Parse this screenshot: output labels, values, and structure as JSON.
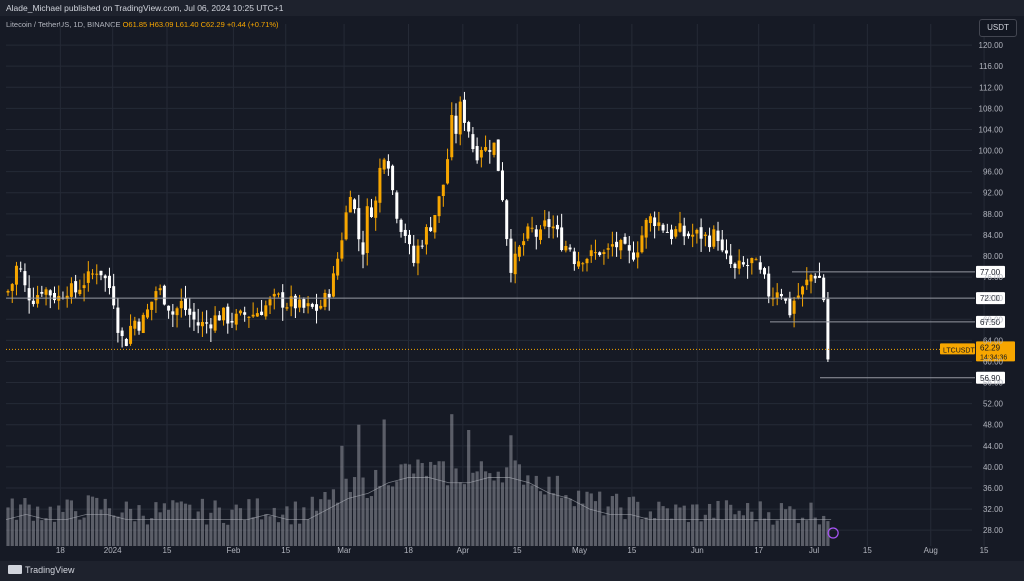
{
  "header": {
    "publisher_line": "Alade_Michael published on TradingView.com, Jul 06, 2024 10:25 UTC+1",
    "symbol": "Litecoin / TetherUS, 1D, BINANCE",
    "ohlc": "O61.85 H63.09 L61.40 C62.29 +0.44 (+0.71%)",
    "currency": "USDT"
  },
  "footer": {
    "brand": "TradingView"
  },
  "colors": {
    "up": "#f7a600",
    "down": "#ffffff",
    "background": "#161a25",
    "grid": "#252a36",
    "text": "#b2b5be",
    "tag": "#f7a600"
  },
  "chart_data": {
    "type": "candlestick",
    "price_axis": {
      "ticks": [
        28,
        32,
        36,
        40,
        44,
        48,
        52,
        56,
        60,
        64,
        68,
        72,
        76,
        80,
        84,
        88,
        92,
        96,
        100,
        104,
        108,
        112,
        116,
        120
      ],
      "ylim": [
        25,
        124
      ]
    },
    "time_axis": {
      "labels": [
        "18",
        "2024",
        "15",
        "Feb",
        "15",
        "Mar",
        "18",
        "Apr",
        "15",
        "May",
        "15",
        "Jun",
        "17",
        "Jul",
        "15",
        "Aug",
        "15"
      ]
    },
    "horizontal_levels": [
      {
        "price": 77.0,
        "label": "77.00",
        "style": "line"
      },
      {
        "price": 72.0,
        "label": "72.00",
        "style": "line"
      },
      {
        "price": 67.5,
        "label": "67.50",
        "style": "line"
      },
      {
        "price": 56.9,
        "label": "56.90",
        "style": "line"
      }
    ],
    "last_price": {
      "symbol": "LTCUSDT",
      "price": 62.29,
      "label": "62.29",
      "countdown": "14:34:36"
    },
    "price_path": [
      [
        0,
        73
      ],
      [
        5,
        74
      ],
      [
        12,
        79
      ],
      [
        20,
        73
      ],
      [
        28,
        72
      ],
      [
        36,
        74
      ],
      [
        44,
        73
      ],
      [
        52,
        72
      ],
      [
        60,
        74
      ],
      [
        68,
        73
      ],
      [
        76,
        75
      ],
      [
        84,
        76
      ],
      [
        92,
        78
      ],
      [
        100,
        75
      ],
      [
        106,
        73
      ],
      [
        112,
        66
      ],
      [
        118,
        63
      ],
      [
        126,
        68
      ],
      [
        134,
        67
      ],
      [
        142,
        70
      ],
      [
        150,
        74
      ],
      [
        158,
        72
      ],
      [
        166,
        69
      ],
      [
        174,
        71
      ],
      [
        182,
        69
      ],
      [
        190,
        67
      ],
      [
        198,
        67
      ],
      [
        206,
        68
      ],
      [
        214,
        69
      ],
      [
        222,
        68
      ],
      [
        230,
        68
      ],
      [
        238,
        69
      ],
      [
        246,
        69
      ],
      [
        254,
        70
      ],
      [
        262,
        71
      ],
      [
        270,
        72
      ],
      [
        278,
        71
      ],
      [
        286,
        71
      ],
      [
        294,
        70
      ],
      [
        302,
        70
      ],
      [
        310,
        70
      ],
      [
        318,
        72
      ],
      [
        326,
        76
      ],
      [
        332,
        82
      ],
      [
        338,
        88
      ],
      [
        342,
        93
      ],
      [
        346,
        89
      ],
      [
        350,
        84
      ],
      [
        354,
        80
      ],
      [
        360,
        90
      ],
      [
        366,
        88
      ],
      [
        372,
        97
      ],
      [
        376,
        100
      ],
      [
        380,
        98
      ],
      [
        386,
        90
      ],
      [
        392,
        86
      ],
      [
        398,
        84
      ],
      [
        404,
        78
      ],
      [
        410,
        82
      ],
      [
        416,
        84
      ],
      [
        422,
        86
      ],
      [
        428,
        89
      ],
      [
        434,
        93
      ],
      [
        440,
        100
      ],
      [
        444,
        107
      ],
      [
        448,
        103
      ],
      [
        452,
        109
      ],
      [
        456,
        106
      ],
      [
        460,
        104
      ],
      [
        466,
        99
      ],
      [
        472,
        101
      ],
      [
        478,
        100
      ],
      [
        484,
        102
      ],
      [
        490,
        96
      ],
      [
        496,
        88
      ],
      [
        500,
        78
      ],
      [
        506,
        79
      ],
      [
        512,
        82
      ],
      [
        518,
        84
      ],
      [
        524,
        85
      ],
      [
        530,
        83
      ],
      [
        536,
        86
      ],
      [
        542,
        86
      ],
      [
        548,
        84
      ],
      [
        554,
        82
      ],
      [
        560,
        82
      ],
      [
        566,
        79
      ],
      [
        572,
        80
      ],
      [
        578,
        80
      ],
      [
        584,
        80
      ],
      [
        590,
        81
      ],
      [
        596,
        80
      ],
      [
        602,
        82
      ],
      [
        608,
        82
      ],
      [
        614,
        81
      ],
      [
        620,
        80
      ],
      [
        626,
        81
      ],
      [
        632,
        84
      ],
      [
        638,
        87
      ],
      [
        644,
        87
      ],
      [
        650,
        86
      ],
      [
        656,
        85
      ],
      [
        662,
        84
      ],
      [
        668,
        85
      ],
      [
        674,
        84
      ],
      [
        680,
        84
      ],
      [
        686,
        84
      ],
      [
        692,
        84
      ],
      [
        698,
        83
      ],
      [
        704,
        84
      ],
      [
        708,
        84
      ],
      [
        712,
        80
      ],
      [
        718,
        79
      ],
      [
        724,
        77
      ],
      [
        730,
        78
      ],
      [
        736,
        78
      ],
      [
        742,
        79
      ],
      [
        748,
        77
      ],
      [
        754,
        75
      ],
      [
        760,
        72
      ],
      [
        766,
        74
      ],
      [
        772,
        73
      ],
      [
        778,
        69
      ],
      [
        784,
        72
      ],
      [
        790,
        73
      ],
      [
        796,
        75
      ],
      [
        802,
        77
      ],
      [
        808,
        76
      ],
      [
        812,
        74
      ],
      [
        816,
        60
      ],
      [
        820,
        62.3
      ]
    ],
    "volume_path": [
      [
        0,
        30
      ],
      [
        20,
        31
      ],
      [
        40,
        30
      ],
      [
        60,
        30
      ],
      [
        80,
        31
      ],
      [
        100,
        31
      ],
      [
        120,
        30
      ],
      [
        140,
        30
      ],
      [
        160,
        30
      ],
      [
        180,
        30
      ],
      [
        200,
        30
      ],
      [
        220,
        30
      ],
      [
        240,
        30
      ],
      [
        260,
        31
      ],
      [
        280,
        30
      ],
      [
        300,
        30
      ],
      [
        320,
        32
      ],
      [
        340,
        34
      ],
      [
        360,
        35
      ],
      [
        380,
        37
      ],
      [
        400,
        38
      ],
      [
        420,
        38
      ],
      [
        440,
        37
      ],
      [
        460,
        37
      ],
      [
        480,
        38
      ],
      [
        500,
        38
      ],
      [
        520,
        37
      ],
      [
        540,
        35
      ],
      [
        560,
        34
      ],
      [
        580,
        32
      ],
      [
        600,
        31
      ],
      [
        620,
        31
      ],
      [
        640,
        30
      ],
      [
        660,
        30
      ],
      [
        680,
        30
      ],
      [
        700,
        30
      ],
      [
        720,
        30
      ],
      [
        740,
        30
      ],
      [
        760,
        30
      ],
      [
        780,
        30
      ],
      [
        800,
        30
      ],
      [
        820,
        30
      ]
    ],
    "volume_spikes": [
      [
        334,
        44
      ],
      [
        350,
        48
      ],
      [
        376,
        49
      ],
      [
        442,
        50
      ],
      [
        460,
        47
      ],
      [
        500,
        46
      ],
      [
        820,
        37
      ]
    ]
  }
}
